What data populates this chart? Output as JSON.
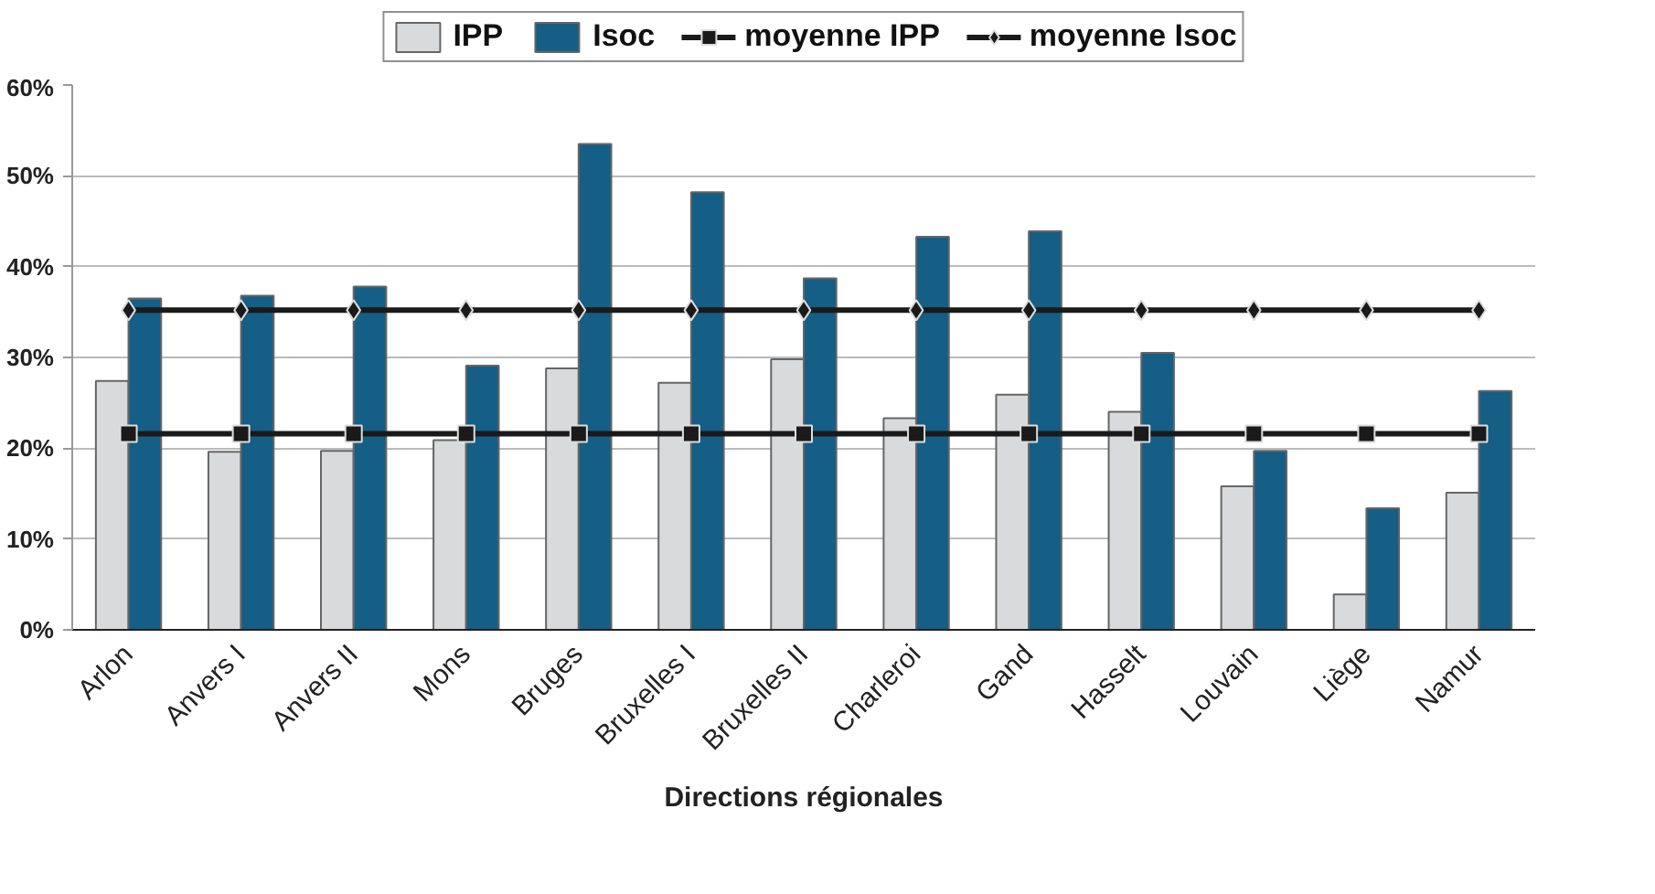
{
  "chart_data": {
    "type": "bar",
    "xlabel": "Directions régionales",
    "categories": [
      "Arlon",
      "Anvers I",
      "Anvers II",
      "Mons",
      "Bruges",
      "Bruxelles I",
      "Bruxelles II",
      "Charleroi",
      "Gand",
      "Hasselt",
      "Louvain",
      "Liège",
      "Namur"
    ],
    "series": [
      {
        "name": "IPP",
        "color": "#d9dadb",
        "values": [
          27.4,
          19.6,
          19.7,
          20.9,
          28.8,
          27.2,
          29.8,
          23.3,
          25.9,
          24.0,
          15.8,
          3.9,
          15.1
        ]
      },
      {
        "name": "Isoc",
        "color": "#155e85",
        "values": [
          36.5,
          36.8,
          37.8,
          29.1,
          53.5,
          48.2,
          38.7,
          43.3,
          43.9,
          30.5,
          19.7,
          13.4,
          26.3
        ]
      },
      {
        "name": "moyenne IPP",
        "type": "line",
        "color": "#1a1a1a",
        "marker": "square",
        "values": [
          21.6,
          21.6,
          21.6,
          21.6,
          21.6,
          21.6,
          21.6,
          21.6,
          21.6,
          21.6,
          21.6,
          21.6,
          21.6
        ]
      },
      {
        "name": "moyenne Isoc",
        "type": "line",
        "color": "#1a1a1a",
        "marker": "diamond",
        "values": [
          35.2,
          35.2,
          35.2,
          35.2,
          35.2,
          35.2,
          35.2,
          35.2,
          35.2,
          35.2,
          35.2,
          35.2,
          35.2
        ]
      }
    ],
    "ylim": [
      0,
      60
    ],
    "yticks": [
      {
        "value": 0,
        "label": "0%"
      },
      {
        "value": 10,
        "label": "10%"
      },
      {
        "value": 20,
        "label": "20%"
      },
      {
        "value": 30,
        "label": "30%"
      },
      {
        "value": 40,
        "label": "40%"
      },
      {
        "value": 50,
        "label": "50%"
      },
      {
        "value": 60,
        "label": "60%"
      }
    ],
    "grid": "y",
    "legend": "top"
  }
}
